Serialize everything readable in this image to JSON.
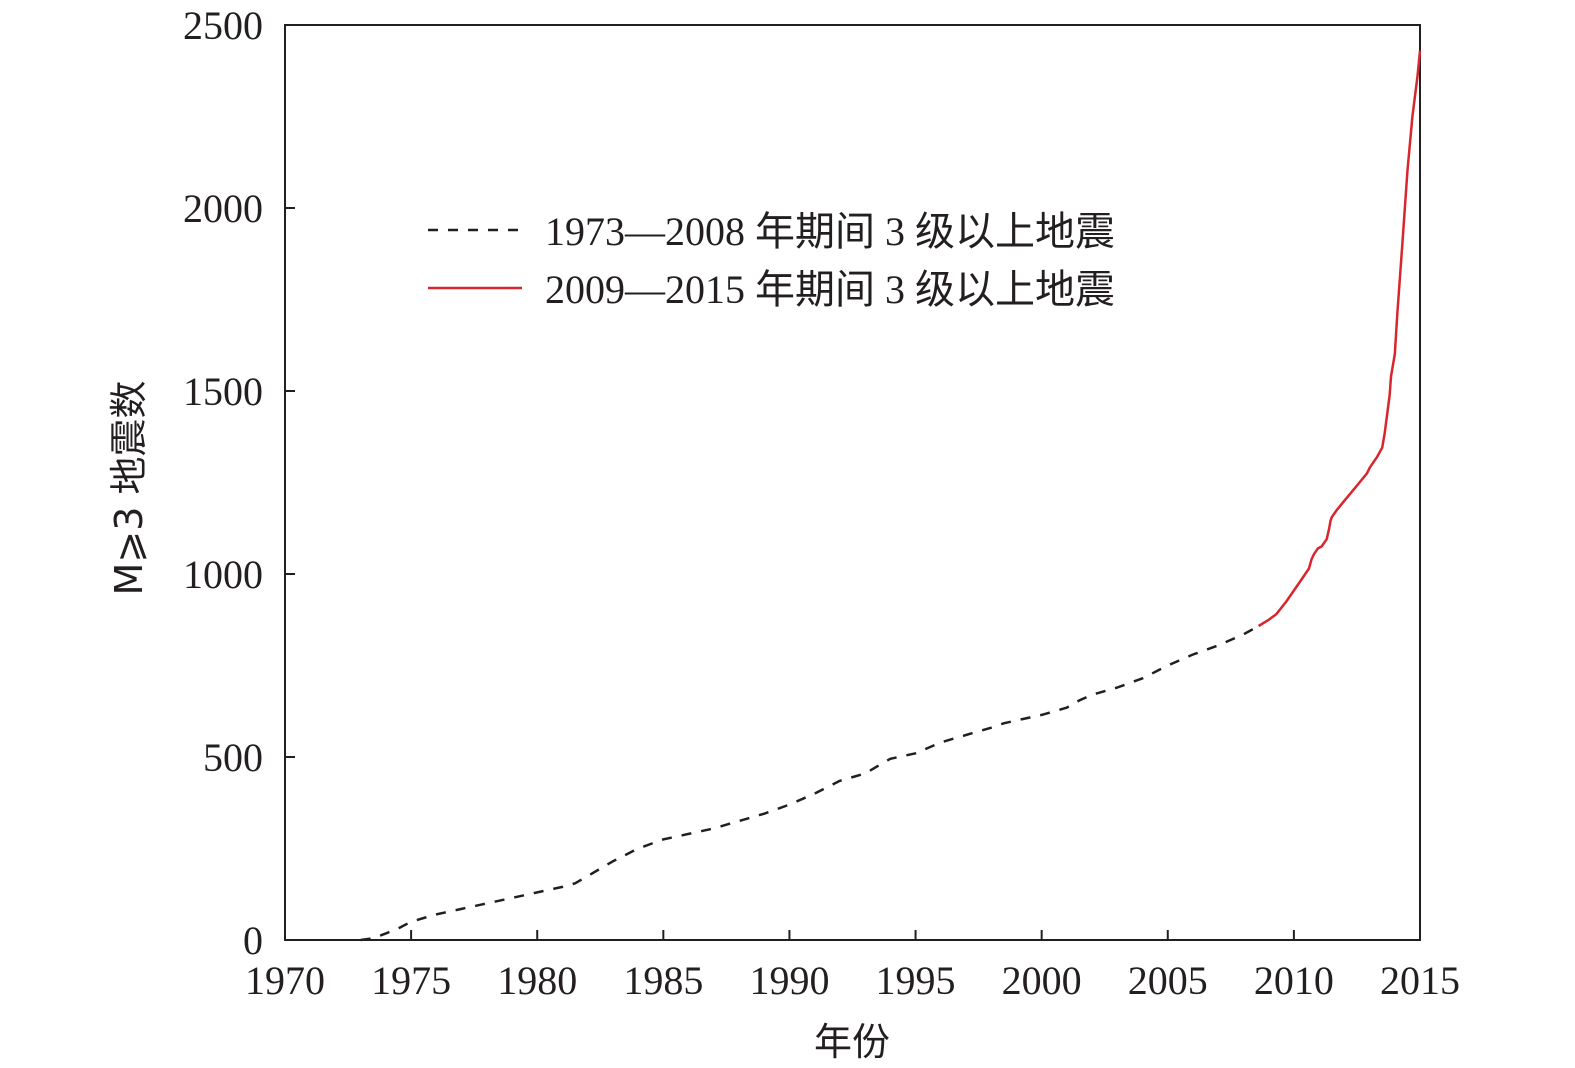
{
  "chart_data": {
    "type": "line",
    "title": "",
    "xlabel": "年份",
    "ylabel": "M⩾3 地震数",
    "xlim": [
      1970,
      2015
    ],
    "ylim": [
      0,
      2500
    ],
    "x_ticks": [
      "1970",
      "1975",
      "1980",
      "1985",
      "1990",
      "1995",
      "2000",
      "2005",
      "2010",
      "2015"
    ],
    "y_ticks": [
      "0",
      "500",
      "1000",
      "1500",
      "2000",
      "2500"
    ],
    "grid": false,
    "legend_position": "upper-left-center",
    "series": [
      {
        "name": "1973—2008 年期间 3 级以上地震",
        "color": "#231f20",
        "style": "dashed",
        "x": [
          1973.0,
          1973.5,
          1974.0,
          1974.5,
          1975.0,
          1975.5,
          1976.0,
          1977.0,
          1978.0,
          1979.0,
          1980.0,
          1981.0,
          1981.5,
          1982.0,
          1983.0,
          1984.0,
          1985.0,
          1986.0,
          1987.0,
          1988.0,
          1989.0,
          1990.0,
          1991.0,
          1992.0,
          1993.0,
          1993.5,
          1994.0,
          1995.0,
          1995.5,
          1996.0,
          1997.0,
          1998.0,
          1998.5,
          1999.0,
          2000.0,
          2001.0,
          2001.5,
          2002.0,
          2003.0,
          2004.0,
          2005.0,
          2006.0,
          2007.0,
          2008.0,
          2008.6
        ],
        "y": [
          0,
          5,
          18,
          32,
          50,
          60,
          70,
          85,
          100,
          115,
          130,
          145,
          155,
          175,
          215,
          250,
          275,
          290,
          305,
          325,
          345,
          370,
          400,
          435,
          455,
          475,
          495,
          510,
          525,
          540,
          560,
          580,
          592,
          600,
          615,
          635,
          655,
          670,
          690,
          715,
          750,
          780,
          805,
          835,
          858
        ]
      },
      {
        "name": "2009—2015 年期间 3 级以上地震",
        "color": "#d7262e",
        "style": "solid",
        "x": [
          2008.6,
          2009.0,
          2009.3,
          2009.7,
          2010.0,
          2010.3,
          2010.6,
          2010.7,
          2010.8,
          2010.95,
          2011.1,
          2011.3,
          2011.4,
          2011.45,
          2011.5,
          2011.7,
          2012.0,
          2012.3,
          2012.6,
          2012.9,
          2013.0,
          2013.1,
          2013.3,
          2013.5,
          2013.6,
          2013.8,
          2013.85,
          2014.0,
          2014.1,
          2014.3,
          2014.5,
          2014.7,
          2014.9,
          2015.0
        ],
        "y": [
          858,
          875,
          890,
          925,
          955,
          985,
          1015,
          1040,
          1055,
          1070,
          1075,
          1095,
          1125,
          1145,
          1155,
          1175,
          1200,
          1225,
          1250,
          1275,
          1290,
          1300,
          1320,
          1345,
          1385,
          1490,
          1540,
          1600,
          1710,
          1900,
          2100,
          2250,
          2360,
          2430
        ]
      }
    ]
  }
}
